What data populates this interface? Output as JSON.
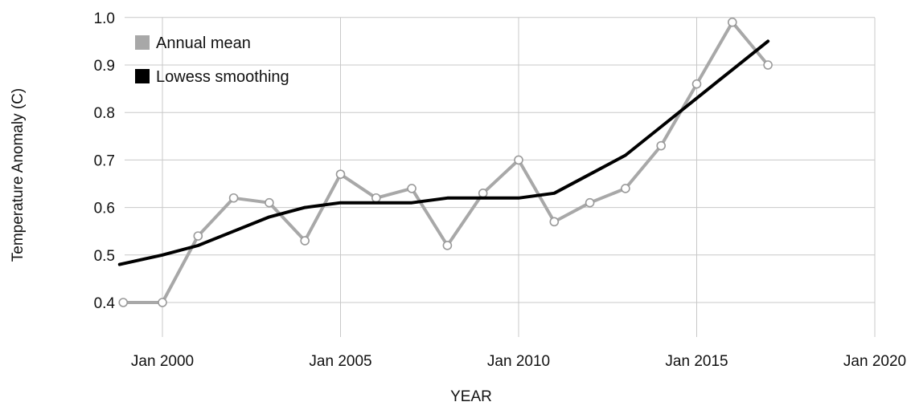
{
  "chart_data": {
    "type": "line",
    "title": "",
    "xlabel": "YEAR",
    "ylabel": "Temperature Anomaly (C)",
    "xlim": [
      1998.8,
      2020
    ],
    "ylim": [
      0.33,
      1.0
    ],
    "x_ticks": [
      {
        "value": 2000,
        "label": "Jan 2000"
      },
      {
        "value": 2005,
        "label": "Jan 2005"
      },
      {
        "value": 2010,
        "label": "Jan 2010"
      },
      {
        "value": 2015,
        "label": "Jan 2015"
      },
      {
        "value": 2020,
        "label": "Jan 2020"
      }
    ],
    "y_ticks": [
      {
        "value": 0.4,
        "label": "0.4"
      },
      {
        "value": 0.5,
        "label": "0.5"
      },
      {
        "value": 0.6,
        "label": "0.6"
      },
      {
        "value": 0.7,
        "label": "0.7"
      },
      {
        "value": 0.8,
        "label": "0.8"
      },
      {
        "value": 0.9,
        "label": "0.9"
      },
      {
        "value": 1.0,
        "label": "1.0"
      }
    ],
    "grid": true,
    "legend_position": "top-left",
    "series": [
      {
        "name": "Annual mean",
        "color": "#a8a8a8",
        "marker": "open-circle",
        "x": [
          1998.9,
          2000.0,
          2001.0,
          2002.0,
          2003.0,
          2004.0,
          2005.0,
          2006.0,
          2007.0,
          2008.0,
          2009.0,
          2010.0,
          2011.0,
          2012.0,
          2013.0,
          2014.0,
          2015.0,
          2016.0,
          2017.0
        ],
        "y": [
          0.4,
          0.4,
          0.54,
          0.62,
          0.61,
          0.53,
          0.67,
          0.62,
          0.64,
          0.52,
          0.63,
          0.7,
          0.57,
          0.61,
          0.64,
          0.73,
          0.86,
          0.99,
          0.9
        ]
      },
      {
        "name": "Lowess smoothing",
        "color": "#000000",
        "marker": "none",
        "x": [
          1998.8,
          2000.0,
          2001.0,
          2002.0,
          2003.0,
          2004.0,
          2005.0,
          2006.0,
          2007.0,
          2008.0,
          2009.0,
          2010.0,
          2011.0,
          2012.0,
          2013.0,
          2014.0,
          2015.0,
          2016.0,
          2017.0
        ],
        "y": [
          0.48,
          0.5,
          0.52,
          0.55,
          0.58,
          0.6,
          0.61,
          0.61,
          0.61,
          0.62,
          0.62,
          0.62,
          0.63,
          0.67,
          0.71,
          0.77,
          0.83,
          0.89,
          0.95
        ]
      }
    ]
  }
}
